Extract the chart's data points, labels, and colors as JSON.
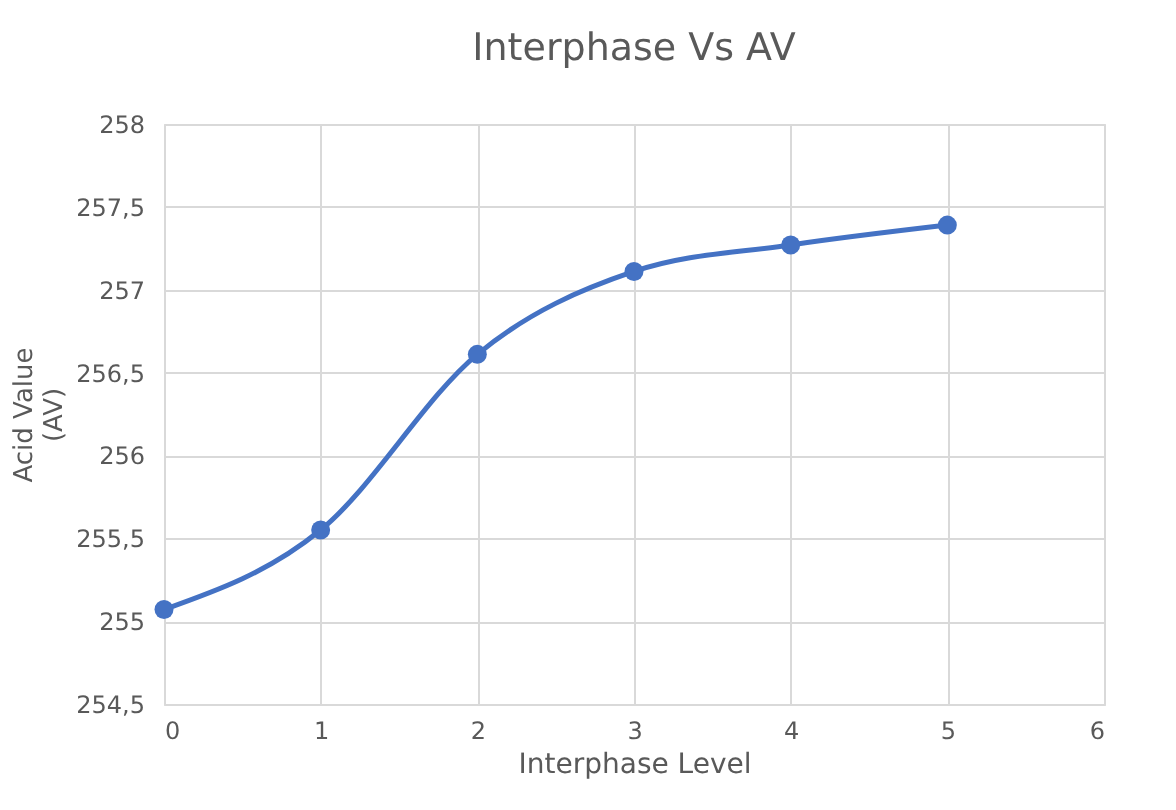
{
  "chart_data": {
    "type": "line",
    "title": "Interphase Vs AV",
    "xlabel": "Interphase Level",
    "ylabel": "Acid Value (AV)",
    "x": [
      0,
      1,
      2,
      3,
      4,
      5
    ],
    "series": [
      {
        "color": "#4472c4",
        "values": [
          255.07,
          255.55,
          256.61,
          257.11,
          257.27,
          257.39
        ]
      }
    ],
    "xlim": [
      0,
      6
    ],
    "xticks": [
      0,
      1,
      2,
      3,
      4,
      5,
      6
    ],
    "ylim": [
      254.5,
      258
    ],
    "yticks": [
      {
        "value": 254.5,
        "label": "254,5"
      },
      255,
      {
        "value": 255.5,
        "label": "255,5"
      },
      256,
      {
        "value": 256.5,
        "label": "256,5"
      },
      257,
      {
        "value": 257.5,
        "label": "257,5"
      },
      258
    ],
    "grid": true,
    "marker": "circle",
    "line_style": "solid"
  }
}
